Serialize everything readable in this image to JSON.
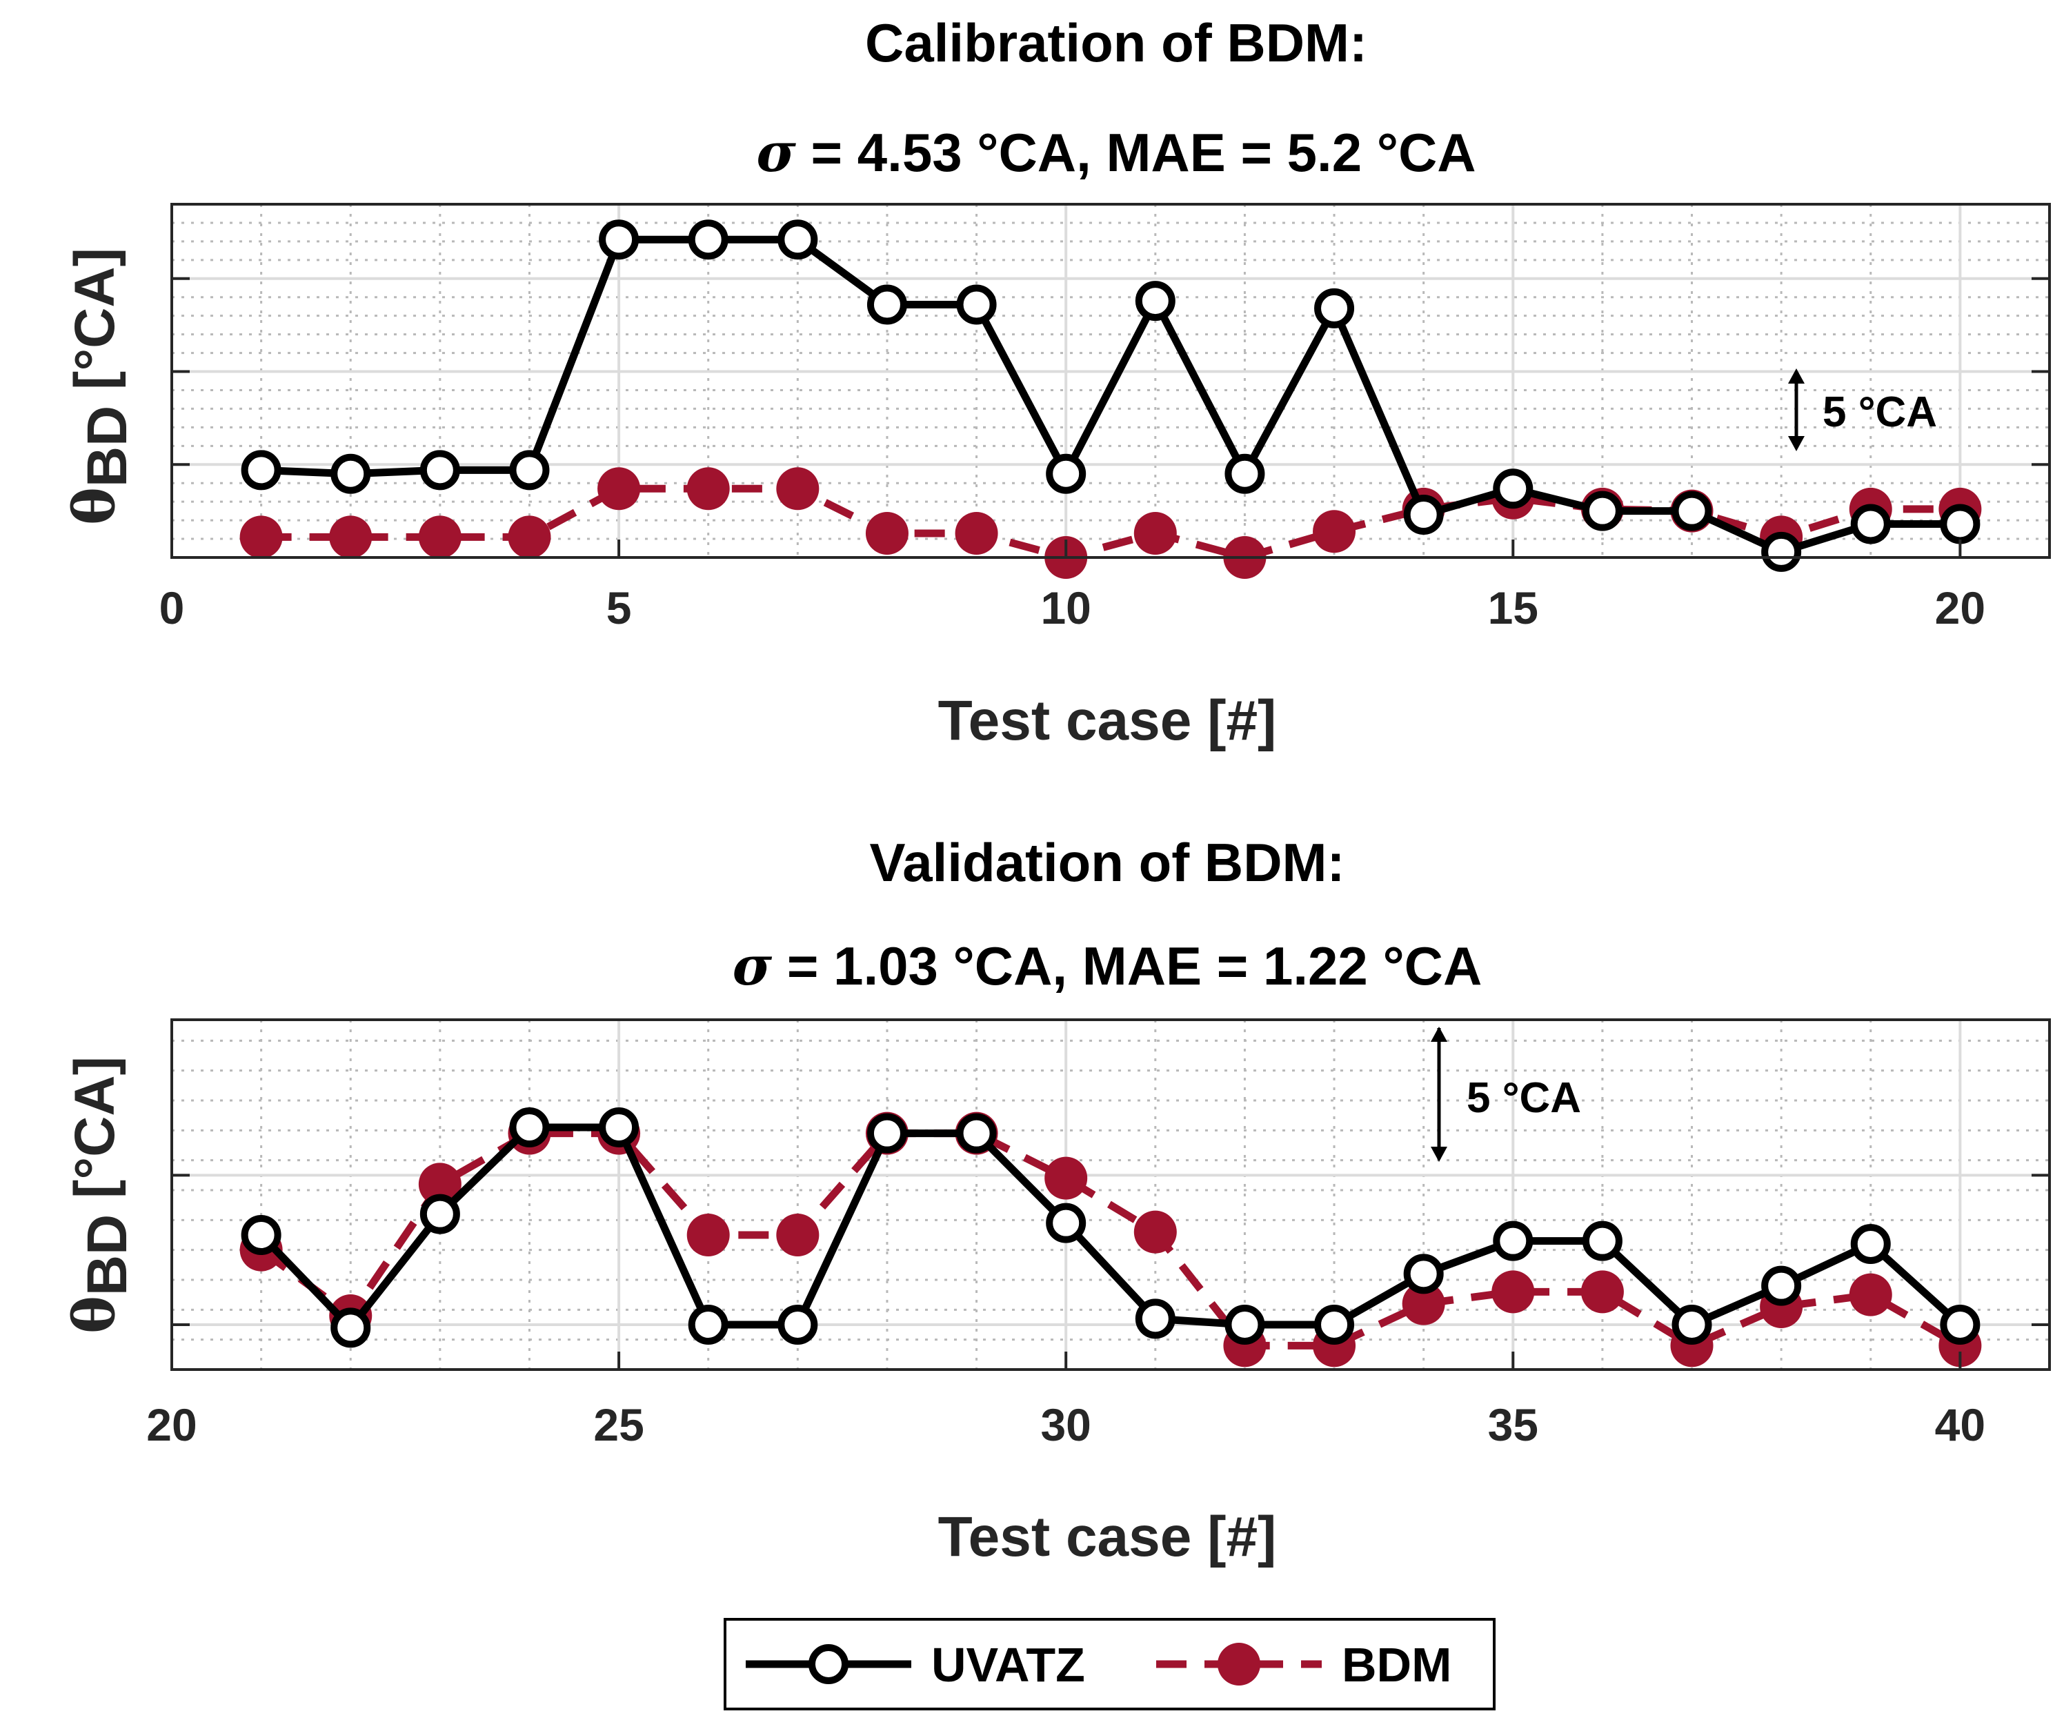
{
  "chart_data": [
    {
      "type": "line",
      "title_line1": "Calibration of BDM:",
      "title_line2_sigma": "σ",
      "title_line2_rest": " = 4.53 °CA, MAE = 5.2 °CA",
      "xlabel": "Test case [#]",
      "ylabel_symbol": "θ",
      "ylabel_subscript": "BD",
      "ylabel_unit": " [°CA]",
      "xlim": [
        0,
        21
      ],
      "ylim": [
        0,
        19
      ],
      "xticks": [
        0,
        5,
        10,
        15,
        20
      ],
      "xtick_labels": [
        "0",
        "5",
        "10",
        "15",
        "20"
      ],
      "grid": true,
      "minor_grid": true,
      "scale_annotation": "5 °CA",
      "x": [
        1,
        2,
        3,
        4,
        5,
        6,
        7,
        8,
        9,
        10,
        11,
        12,
        13,
        14,
        15,
        16,
        17,
        18,
        19,
        20
      ],
      "series": [
        {
          "name": "UVATZ",
          "color": "#000000",
          "style": "solid",
          "marker": "open-circle",
          "values": [
            4.7,
            4.5,
            4.7,
            4.7,
            17.1,
            17.1,
            17.1,
            13.6,
            13.6,
            4.5,
            13.8,
            4.5,
            13.4,
            2.3,
            3.7,
            2.5,
            2.5,
            0.3,
            1.8,
            1.8
          ]
        },
        {
          "name": "BDM",
          "color": "#a0132e",
          "style": "dashed",
          "marker": "filled-circle",
          "values": [
            1.1,
            1.1,
            1.1,
            1.1,
            3.7,
            3.7,
            3.7,
            1.3,
            1.3,
            0.0,
            1.3,
            0.0,
            1.4,
            2.6,
            3.2,
            2.6,
            2.5,
            1.1,
            2.6,
            2.6
          ]
        }
      ]
    },
    {
      "type": "line",
      "title_line1": "Validation of BDM:",
      "title_line2_sigma": "σ",
      "title_line2_rest": " = 1.03 °CA, MAE = 1.22 °CA",
      "xlabel": "Test case [#]",
      "ylabel_symbol": "θ",
      "ylabel_subscript": "BD",
      "ylabel_unit": " [°CA]",
      "xlim": [
        20,
        41
      ],
      "ylim": [
        0,
        11.7
      ],
      "xticks": [
        20,
        25,
        30,
        35,
        40
      ],
      "xtick_labels": [
        "20",
        "25",
        "30",
        "35",
        "40"
      ],
      "grid": true,
      "minor_grid": true,
      "scale_annotation": "5 °CA",
      "x": [
        21,
        22,
        23,
        24,
        25,
        26,
        27,
        28,
        29,
        30,
        31,
        32,
        33,
        34,
        35,
        36,
        37,
        38,
        39,
        40
      ],
      "series": [
        {
          "name": "UVATZ",
          "color": "#000000",
          "style": "solid",
          "marker": "open-circle",
          "values": [
            4.5,
            1.4,
            5.2,
            8.1,
            8.1,
            1.5,
            1.5,
            7.9,
            7.9,
            4.9,
            1.7,
            1.5,
            1.5,
            3.2,
            4.3,
            4.3,
            1.5,
            2.8,
            4.2,
            1.5
          ]
        },
        {
          "name": "BDM",
          "color": "#a0132e",
          "style": "dashed",
          "marker": "filled-circle",
          "values": [
            4.0,
            1.8,
            6.2,
            7.9,
            7.9,
            4.5,
            4.5,
            7.9,
            7.9,
            6.4,
            4.6,
            0.8,
            0.8,
            2.2,
            2.6,
            2.6,
            0.8,
            2.1,
            2.5,
            0.8
          ]
        }
      ]
    }
  ],
  "legend": {
    "placement": "bottom-center",
    "entries": [
      "UVATZ",
      "BDM"
    ]
  }
}
